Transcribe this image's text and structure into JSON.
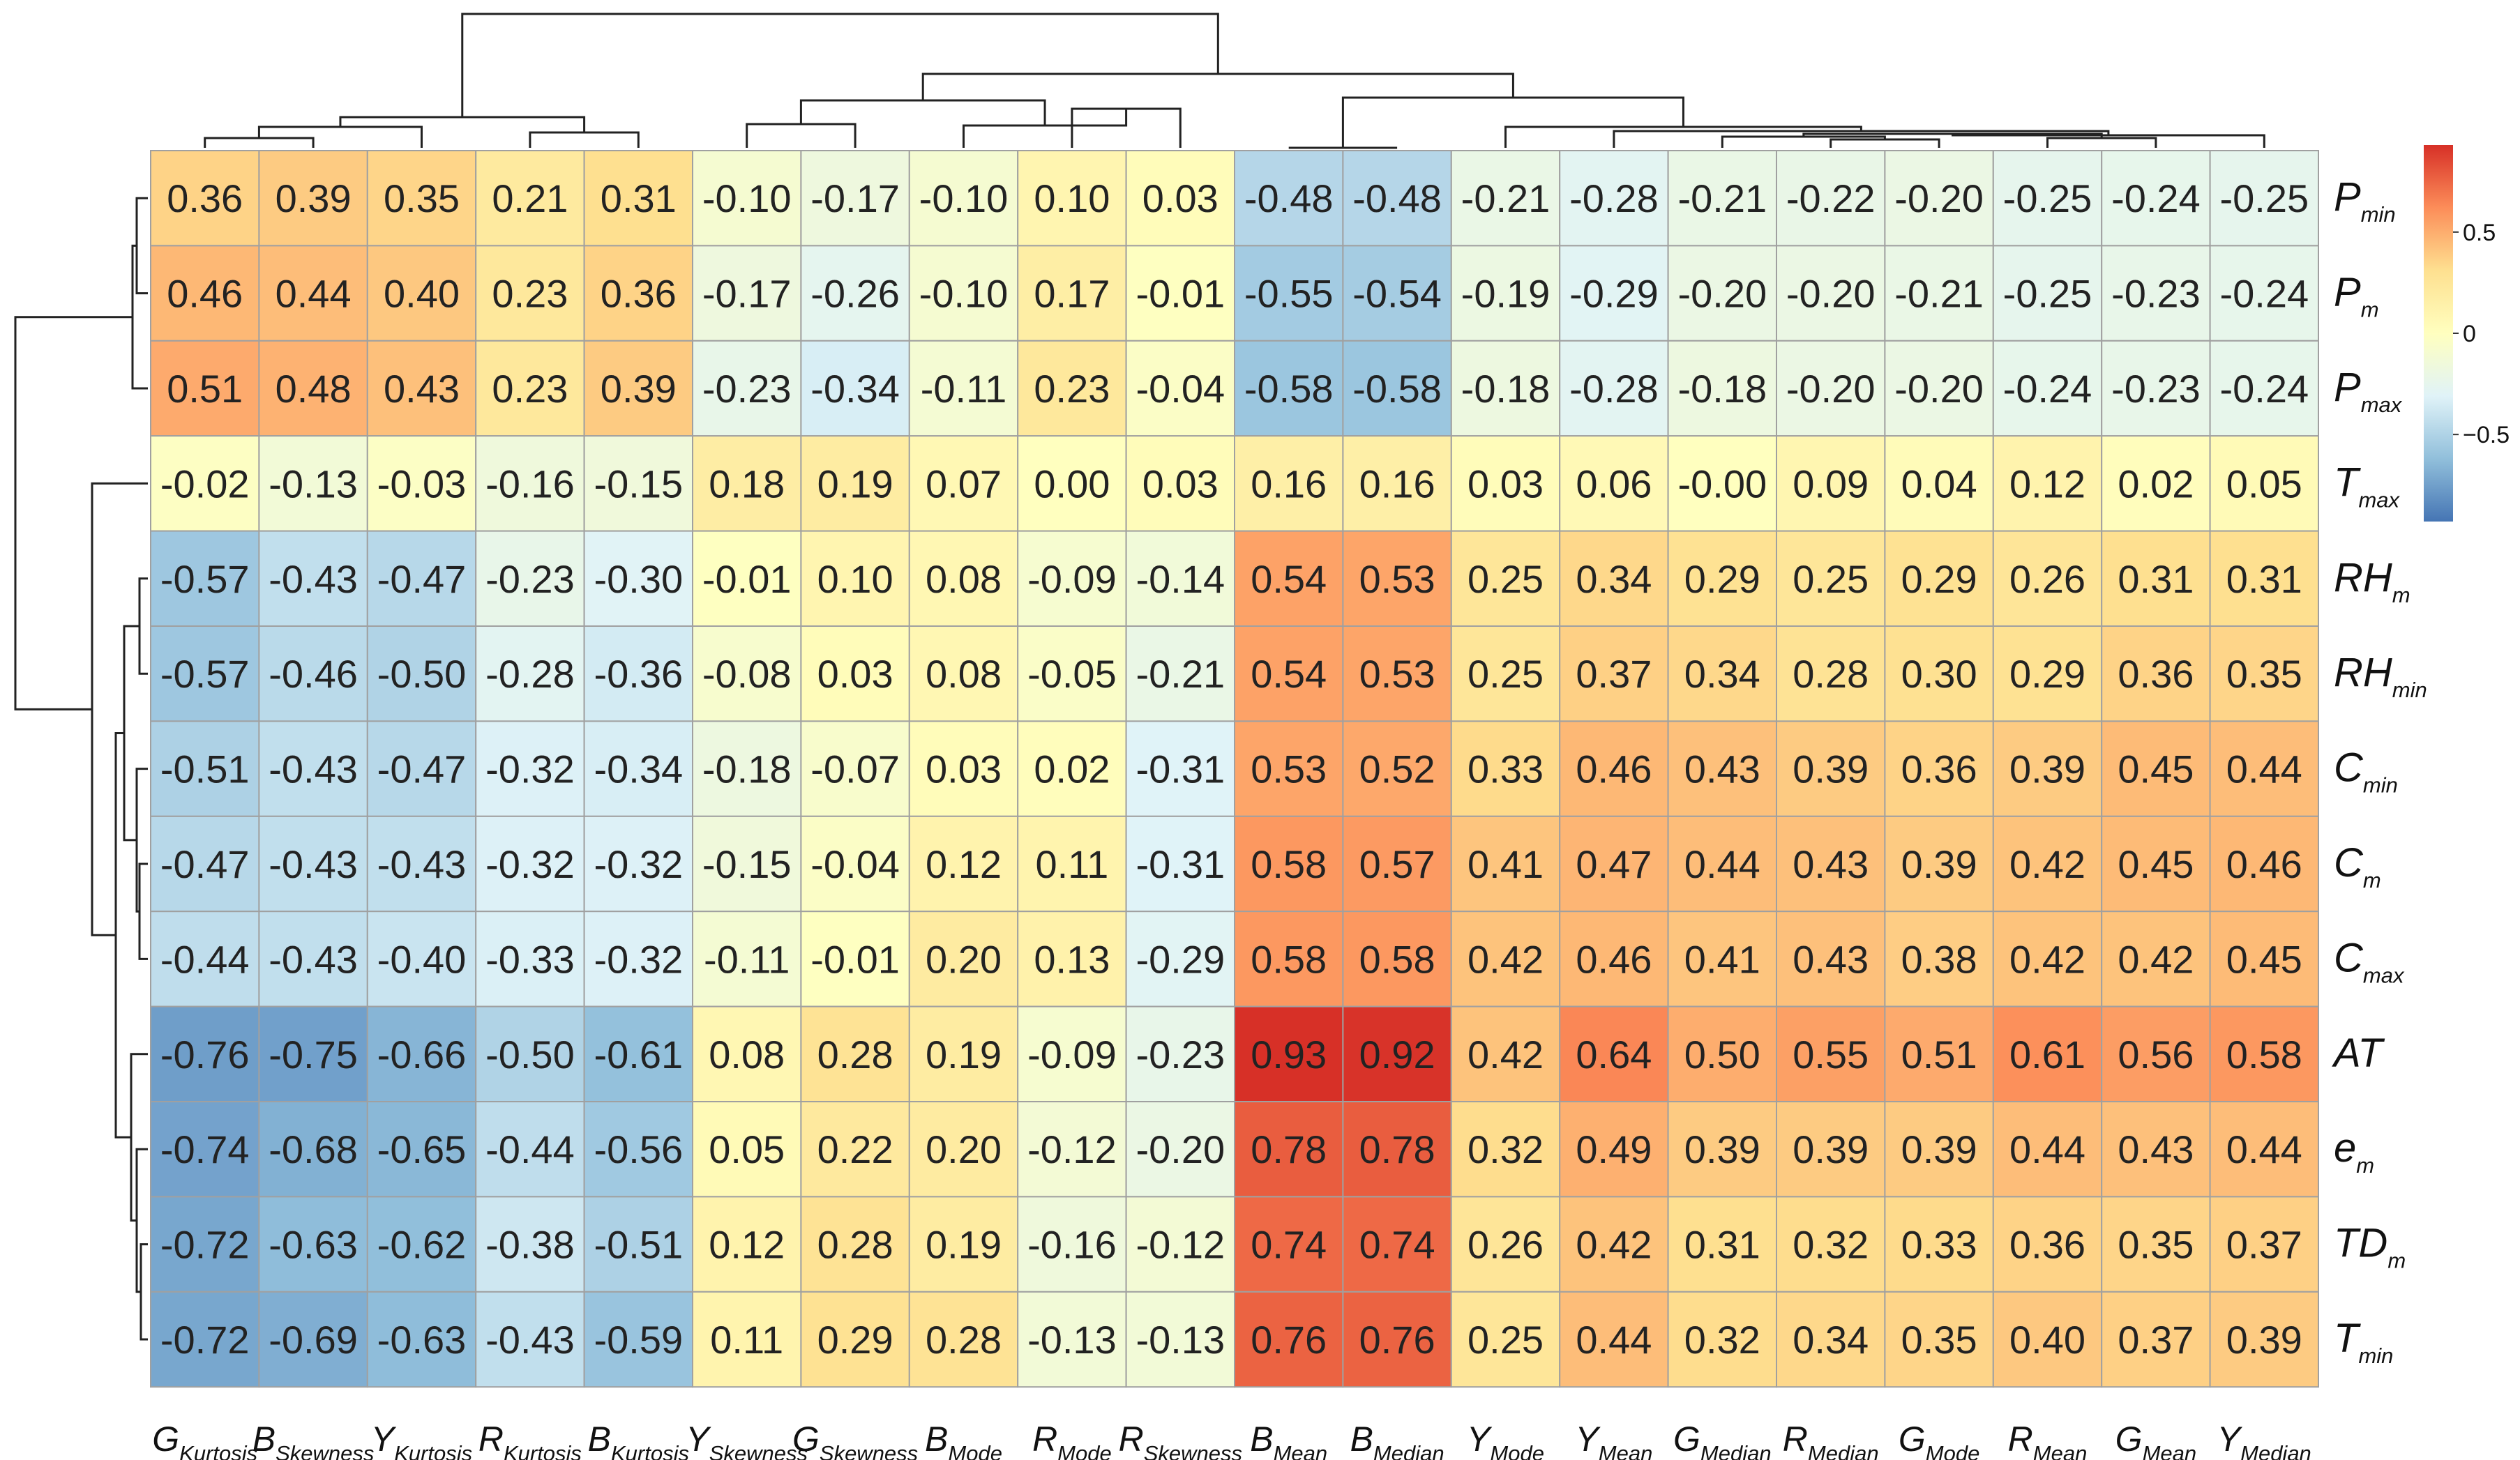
{
  "chart_data": {
    "type": "heatmap",
    "title": "",
    "rows": [
      {
        "name": "P",
        "sub": "min"
      },
      {
        "name": "P",
        "sub": "m"
      },
      {
        "name": "P",
        "sub": "max"
      },
      {
        "name": "T",
        "sub": "max"
      },
      {
        "name": "RH",
        "sub": "m"
      },
      {
        "name": "RH",
        "sub": "min"
      },
      {
        "name": "C",
        "sub": "min"
      },
      {
        "name": "C",
        "sub": "m"
      },
      {
        "name": "C",
        "sub": "max"
      },
      {
        "name": "AT",
        "sub": ""
      },
      {
        "name": "e",
        "sub": "m"
      },
      {
        "name": "TD",
        "sub": "m"
      },
      {
        "name": "T",
        "sub": "min"
      }
    ],
    "columns": [
      {
        "name": "G",
        "sub": "Kurtosis"
      },
      {
        "name": "B",
        "sub": "Skewness"
      },
      {
        "name": "Y",
        "sub": "Kurtosis"
      },
      {
        "name": "R",
        "sub": "Kurtosis"
      },
      {
        "name": "B",
        "sub": "Kurtosis"
      },
      {
        "name": "Y",
        "sub": "Skewness"
      },
      {
        "name": "G",
        "sub": "Skewness"
      },
      {
        "name": "B",
        "sub": "Mode"
      },
      {
        "name": "R",
        "sub": "Mode"
      },
      {
        "name": "R",
        "sub": "Skewness"
      },
      {
        "name": "B",
        "sub": "Mean"
      },
      {
        "name": "B",
        "sub": "Median"
      },
      {
        "name": "Y",
        "sub": "Mode"
      },
      {
        "name": "Y",
        "sub": "Mean"
      },
      {
        "name": "G",
        "sub": "Median"
      },
      {
        "name": "R",
        "sub": "Median"
      },
      {
        "name": "G",
        "sub": "Mode"
      },
      {
        "name": "R",
        "sub": "Mean"
      },
      {
        "name": "G",
        "sub": "Mean"
      },
      {
        "name": "Y",
        "sub": "Median"
      }
    ],
    "values": [
      [
        "0.36",
        "0.39",
        "0.35",
        "0.21",
        "0.31",
        "-0.10",
        "-0.17",
        "-0.10",
        "0.10",
        "0.03",
        "-0.48",
        "-0.48",
        "-0.21",
        "-0.28",
        "-0.21",
        "-0.22",
        "-0.20",
        "-0.25",
        "-0.24",
        "-0.25"
      ],
      [
        "0.46",
        "0.44",
        "0.40",
        "0.23",
        "0.36",
        "-0.17",
        "-0.26",
        "-0.10",
        "0.17",
        "-0.01",
        "-0.55",
        "-0.54",
        "-0.19",
        "-0.29",
        "-0.20",
        "-0.20",
        "-0.21",
        "-0.25",
        "-0.23",
        "-0.24"
      ],
      [
        "0.51",
        "0.48",
        "0.43",
        "0.23",
        "0.39",
        "-0.23",
        "-0.34",
        "-0.11",
        "0.23",
        "-0.04",
        "-0.58",
        "-0.58",
        "-0.18",
        "-0.28",
        "-0.18",
        "-0.20",
        "-0.20",
        "-0.24",
        "-0.23",
        "-0.24"
      ],
      [
        "-0.02",
        "-0.13",
        "-0.03",
        "-0.16",
        "-0.15",
        "0.18",
        "0.19",
        "0.07",
        "0.00",
        "0.03",
        "0.16",
        "0.16",
        "0.03",
        "0.06",
        "-0.00",
        "0.09",
        "0.04",
        "0.12",
        "0.02",
        "0.05"
      ],
      [
        "-0.57",
        "-0.43",
        "-0.47",
        "-0.23",
        "-0.30",
        "-0.01",
        "0.10",
        "0.08",
        "-0.09",
        "-0.14",
        "0.54",
        "0.53",
        "0.25",
        "0.34",
        "0.29",
        "0.25",
        "0.29",
        "0.26",
        "0.31",
        "0.31"
      ],
      [
        "-0.57",
        "-0.46",
        "-0.50",
        "-0.28",
        "-0.36",
        "-0.08",
        "0.03",
        "0.08",
        "-0.05",
        "-0.21",
        "0.54",
        "0.53",
        "0.25",
        "0.37",
        "0.34",
        "0.28",
        "0.30",
        "0.29",
        "0.36",
        "0.35"
      ],
      [
        "-0.51",
        "-0.43",
        "-0.47",
        "-0.32",
        "-0.34",
        "-0.18",
        "-0.07",
        "0.03",
        "0.02",
        "-0.31",
        "0.53",
        "0.52",
        "0.33",
        "0.46",
        "0.43",
        "0.39",
        "0.36",
        "0.39",
        "0.45",
        "0.44"
      ],
      [
        "-0.47",
        "-0.43",
        "-0.43",
        "-0.32",
        "-0.32",
        "-0.15",
        "-0.04",
        "0.12",
        "0.11",
        "-0.31",
        "0.58",
        "0.57",
        "0.41",
        "0.47",
        "0.44",
        "0.43",
        "0.39",
        "0.42",
        "0.45",
        "0.46"
      ],
      [
        "-0.44",
        "-0.43",
        "-0.40",
        "-0.33",
        "-0.32",
        "-0.11",
        "-0.01",
        "0.20",
        "0.13",
        "-0.29",
        "0.58",
        "0.58",
        "0.42",
        "0.46",
        "0.41",
        "0.43",
        "0.38",
        "0.42",
        "0.42",
        "0.45"
      ],
      [
        "-0.76",
        "-0.75",
        "-0.66",
        "-0.50",
        "-0.61",
        "0.08",
        "0.28",
        "0.19",
        "-0.09",
        "-0.23",
        "0.93",
        "0.92",
        "0.42",
        "0.64",
        "0.50",
        "0.55",
        "0.51",
        "0.61",
        "0.56",
        "0.58"
      ],
      [
        "-0.74",
        "-0.68",
        "-0.65",
        "-0.44",
        "-0.56",
        "0.05",
        "0.22",
        "0.20",
        "-0.12",
        "-0.20",
        "0.78",
        "0.78",
        "0.32",
        "0.49",
        "0.39",
        "0.39",
        "0.39",
        "0.44",
        "0.43",
        "0.44"
      ],
      [
        "-0.72",
        "-0.63",
        "-0.62",
        "-0.38",
        "-0.51",
        "0.12",
        "0.28",
        "0.19",
        "-0.16",
        "-0.12",
        "0.74",
        "0.74",
        "0.26",
        "0.42",
        "0.31",
        "0.32",
        "0.33",
        "0.36",
        "0.35",
        "0.37"
      ],
      [
        "-0.72",
        "-0.69",
        "-0.63",
        "-0.43",
        "-0.59",
        "0.11",
        "0.29",
        "0.28",
        "-0.13",
        "-0.13",
        "0.76",
        "0.76",
        "0.25",
        "0.44",
        "0.32",
        "0.34",
        "0.35",
        "0.40",
        "0.37",
        "0.39"
      ]
    ],
    "colorbar": {
      "ticks": [
        "0.5",
        "0",
        "−0.5"
      ],
      "tick_values": [
        0.5,
        0,
        -0.5
      ],
      "range": [
        -0.93,
        0.93
      ],
      "colors": [
        "#4575b4",
        "#91bfdb",
        "#e0f3f8",
        "#ffffbf",
        "#fee090",
        "#fc8d59",
        "#d73027"
      ]
    },
    "grid": true,
    "cell_border_color": "#a0a0a0",
    "dendrogram_color": "#222222"
  }
}
